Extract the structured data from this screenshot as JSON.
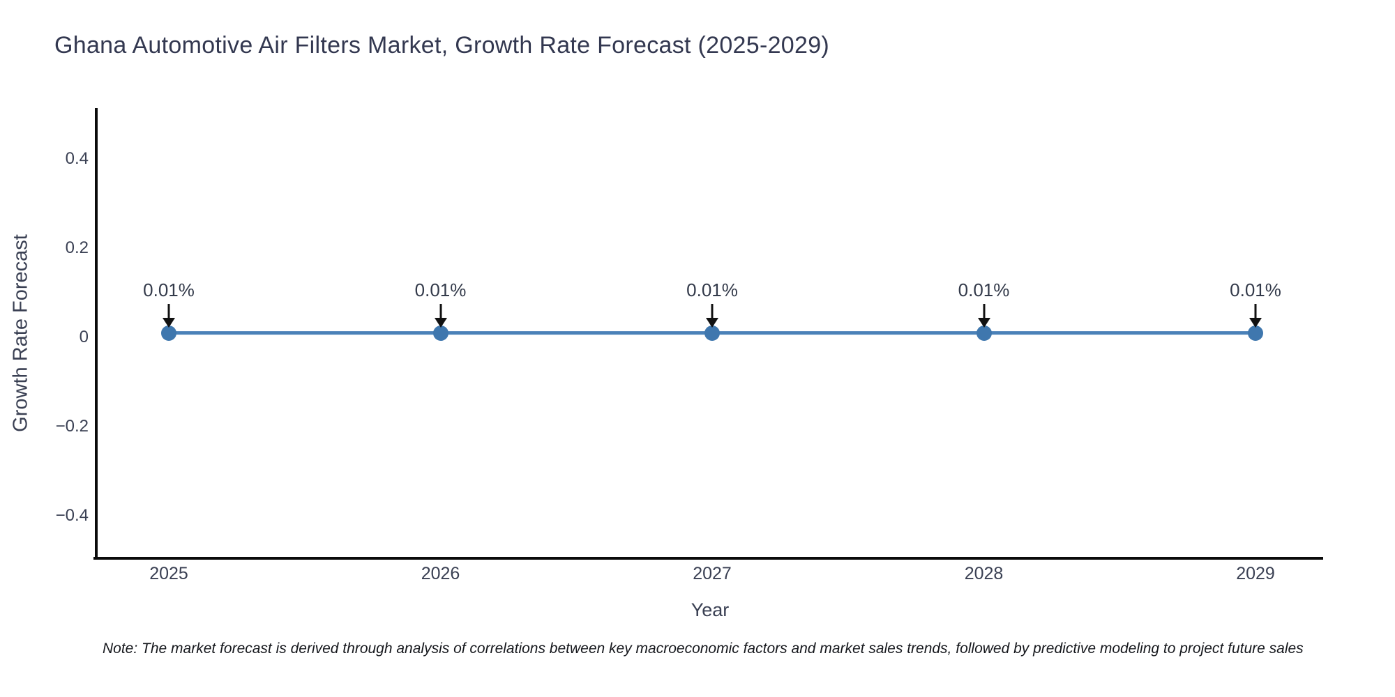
{
  "title": "Ghana Automotive Air Filters Market, Growth Rate Forecast (2025-2029)",
  "note": "Note: The market forecast is derived through analysis of correlations between key macroeconomic factors and market sales trends, followed by predictive modeling to project future sales",
  "chart_data": {
    "type": "line",
    "title": "Ghana Automotive Air Filters Market, Growth Rate Forecast (2025-2029)",
    "xlabel": "Year",
    "ylabel": "Growth Rate Forecast",
    "x": [
      "2025",
      "2026",
      "2027",
      "2028",
      "2029"
    ],
    "series": [
      {
        "name": "Growth Rate Forecast",
        "values": [
          0.01,
          0.01,
          0.01,
          0.01,
          0.01
        ]
      }
    ],
    "point_labels": [
      "0.01%",
      "0.01%",
      "0.01%",
      "0.01%",
      "0.01%"
    ],
    "y_ticks": [
      {
        "label": "0.4",
        "value": 0.4
      },
      {
        "label": "0.2",
        "value": 0.2
      },
      {
        "label": "0",
        "value": 0
      },
      {
        "label": "−0.2",
        "value": -0.2
      },
      {
        "label": "−0.4",
        "value": -0.4
      }
    ],
    "ylim": [
      -0.5,
      0.52
    ],
    "grid": false,
    "legend": "none",
    "annotation_style": "down-arrow",
    "colors": {
      "line": "#4a81b8",
      "marker": "#3f77ae",
      "arrow": "#111111",
      "axis": "#0b0b0b",
      "tick_text": "#3a4053",
      "title_text": "#333850"
    }
  }
}
